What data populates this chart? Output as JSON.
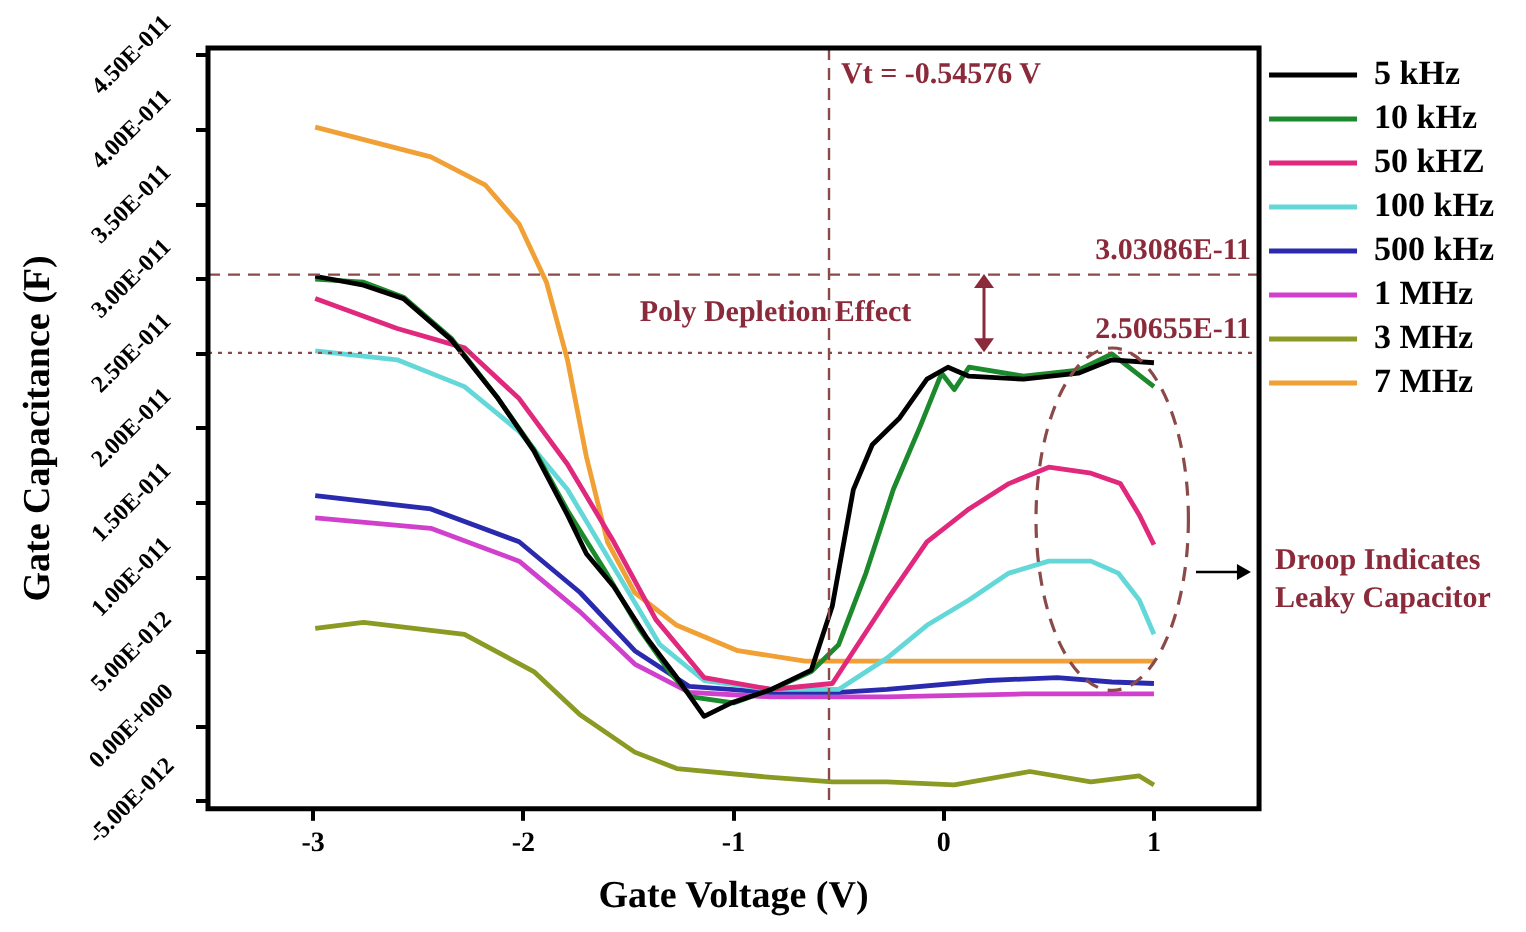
{
  "chart_data": {
    "type": "line",
    "xlabel": "Gate Voltage (V)",
    "ylabel": "Gate Capacitance (F)",
    "xlim": [
      -3.5,
      1.5
    ],
    "xticks": [
      -3,
      -2,
      -1,
      0,
      1
    ],
    "ylim": [
      -5.5e-12,
      4.55e-11
    ],
    "yticks": [
      {
        "value": -5e-12,
        "label": "-5.00E-012"
      },
      {
        "value": 0,
        "label": "0.00E+000"
      },
      {
        "value": 5e-12,
        "label": "5.00E-012"
      },
      {
        "value": 1e-11,
        "label": "1.00E-011"
      },
      {
        "value": 1.5e-11,
        "label": "1.50E-011"
      },
      {
        "value": 2e-11,
        "label": "2.00E-011"
      },
      {
        "value": 2.5e-11,
        "label": "2.50E-011"
      },
      {
        "value": 3e-11,
        "label": "3.00E-011"
      },
      {
        "value": 3.5e-11,
        "label": "3.50E-011"
      },
      {
        "value": 4e-11,
        "label": "4.00E-011"
      },
      {
        "value": 4.5e-11,
        "label": "4.50E-011"
      }
    ],
    "grid": false,
    "legend": "right",
    "marker": "none",
    "line_style": "solid",
    "series": [
      {
        "name": "5 kHz",
        "color": "#000000",
        "x": [
          -2.99,
          -2.76,
          -2.57,
          -2.34,
          -2.12,
          -1.95,
          -1.79,
          -1.7,
          -1.57,
          -1.41,
          -1.27,
          -1.14,
          -1.01,
          -0.82,
          -0.63,
          -0.53,
          -0.43,
          -0.34,
          -0.21,
          -0.08,
          0.02,
          0.12,
          0.38,
          0.64,
          0.8,
          1.0
        ],
        "values": [
          3.02e-11,
          2.96e-11,
          2.87e-11,
          2.59e-11,
          2.2e-11,
          1.85e-11,
          1.42e-11,
          1.16e-11,
          9.4e-12,
          5.9e-12,
          3.3e-12,
          7e-13,
          1.6e-12,
          2.5e-12,
          3.8e-12,
          8.1e-12,
          1.59e-11,
          1.89e-11,
          2.07e-11,
          2.33e-11,
          2.41e-11,
          2.35e-11,
          2.33e-11,
          2.37e-11,
          2.46e-11,
          2.44e-11
        ]
      },
      {
        "name": "10 kHz",
        "color": "#1c8a2c",
        "x": [
          -2.99,
          -2.76,
          -2.57,
          -2.34,
          -2.12,
          -1.95,
          -1.79,
          -1.6,
          -1.45,
          -1.3,
          -1.2,
          -1.0,
          -0.82,
          -0.63,
          -0.5,
          -0.37,
          -0.24,
          -0.11,
          -0.01,
          0.05,
          0.12,
          0.38,
          0.64,
          0.8,
          1.0
        ],
        "values": [
          3e-11,
          2.98e-11,
          2.88e-11,
          2.6e-11,
          2.2e-11,
          1.86e-11,
          1.45e-11,
          1.02e-11,
          6.6e-12,
          3.6e-12,
          2e-12,
          1.6e-12,
          2.5e-12,
          3.7e-12,
          5.5e-12,
          1.03e-11,
          1.59e-11,
          2.02e-11,
          2.37e-11,
          2.26e-11,
          2.41e-11,
          2.35e-11,
          2.39e-11,
          2.5e-11,
          2.28e-11
        ]
      },
      {
        "name": "50 kHZ",
        "color": "#e0287c",
        "x": [
          -2.99,
          -2.6,
          -2.28,
          -2.02,
          -1.79,
          -1.57,
          -1.37,
          -1.14,
          -0.82,
          -0.53,
          -0.27,
          -0.08,
          0.12,
          0.31,
          0.5,
          0.7,
          0.84,
          0.93,
          1.0
        ],
        "values": [
          2.87e-11,
          2.67e-11,
          2.54e-11,
          2.2e-11,
          1.76e-11,
          1.24e-11,
          7.2e-12,
          3.3e-12,
          2.5e-12,
          2.9e-12,
          8.5e-12,
          1.24e-11,
          1.46e-11,
          1.63e-11,
          1.74e-11,
          1.7e-11,
          1.63e-11,
          1.42e-11,
          1.22e-11
        ]
      },
      {
        "name": "100 kHz",
        "color": "#64d8d8",
        "x": [
          -2.99,
          -2.6,
          -2.28,
          -2.02,
          -1.79,
          -1.57,
          -1.35,
          -1.14,
          -0.82,
          -0.5,
          -0.27,
          -0.08,
          0.12,
          0.31,
          0.5,
          0.7,
          0.83,
          0.93,
          1.0
        ],
        "values": [
          2.52e-11,
          2.46e-11,
          2.28e-11,
          1.98e-11,
          1.59e-11,
          1.07e-11,
          5.5e-12,
          3.1e-12,
          2.5e-12,
          2.5e-12,
          4.6e-12,
          6.8e-12,
          8.5e-12,
          1.03e-11,
          1.11e-11,
          1.11e-11,
          1.03e-11,
          8.5e-12,
          6.2e-12
        ]
      },
      {
        "name": "500 kHz",
        "color": "#2a2aae",
        "x": [
          -2.99,
          -2.44,
          -2.02,
          -1.73,
          -1.47,
          -1.21,
          -0.82,
          -0.5,
          -0.27,
          0.21,
          0.54,
          0.8,
          1.0
        ],
        "values": [
          1.55e-11,
          1.46e-11,
          1.24e-11,
          9e-12,
          5.1e-12,
          2.7e-12,
          2.3e-12,
          2.3e-12,
          2.5e-12,
          3.1e-12,
          3.3e-12,
          3e-12,
          2.9e-12
        ]
      },
      {
        "name": "1 MHz",
        "color": "#d040cc",
        "x": [
          -2.99,
          -2.44,
          -2.02,
          -1.73,
          -1.47,
          -1.21,
          -0.82,
          -0.27,
          0.38,
          1.0
        ],
        "values": [
          1.4e-11,
          1.33e-11,
          1.11e-11,
          7.7e-12,
          4.2e-12,
          2.3e-12,
          2e-12,
          2e-12,
          2.2e-12,
          2.2e-12
        ]
      },
      {
        "name": "3 MHz",
        "color": "#8a9a22",
        "x": [
          -2.99,
          -2.76,
          -2.28,
          -1.95,
          -1.73,
          -1.47,
          -1.27,
          -0.82,
          -0.53,
          -0.27,
          0.05,
          0.41,
          0.7,
          0.93,
          1.0
        ],
        "values": [
          6.6e-12,
          7e-12,
          6.2e-12,
          3.7e-12,
          8e-13,
          -1.7e-12,
          -2.8e-12,
          -3.4e-12,
          -3.7e-12,
          -3.7e-12,
          -3.9e-12,
          -3e-12,
          -3.7e-12,
          -3.3e-12,
          -3.9e-12
        ]
      },
      {
        "name": "7 MHz",
        "color": "#f0a034",
        "x": [
          -2.99,
          -2.44,
          -2.18,
          -2.02,
          -1.89,
          -1.79,
          -1.7,
          -1.6,
          -1.47,
          -1.27,
          -0.98,
          -0.66,
          -0.3,
          0.2,
          0.6,
          1.0
        ],
        "values": [
          4.02e-11,
          3.82e-11,
          3.63e-11,
          3.37e-11,
          2.98e-11,
          2.46e-11,
          1.81e-11,
          1.24e-11,
          9e-12,
          6.8e-12,
          5.1e-12,
          4.4e-12,
          4.4e-12,
          4.4e-12,
          4.4e-12,
          4.4e-12
        ]
      }
    ],
    "ref_lines": [
      {
        "axis": "x",
        "value": -0.54576,
        "label": "Vt = -0.54576 V",
        "color": "#8b4a4a",
        "line_style": "dashed"
      },
      {
        "axis": "y",
        "value": 3.03086e-11,
        "label": "3.03086E-11",
        "color": "#8b4a4a",
        "line_style": "dashed"
      },
      {
        "axis": "y",
        "value": 2.50655e-11,
        "label": "2.50655E-11",
        "color": "#8b4a4a",
        "line_style": "dotted"
      }
    ],
    "annotations": [
      "Poly Depletion Effect",
      "Droop Indicates Leaky Capacitor"
    ]
  }
}
